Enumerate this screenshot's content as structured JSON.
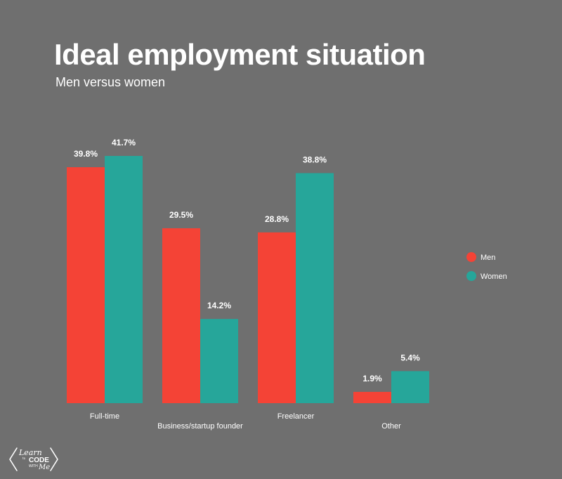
{
  "chart_data": {
    "type": "bar",
    "title": "Ideal employment situation",
    "subtitle": "Men versus women",
    "categories": [
      "Full-time",
      "Business/startup founder",
      "Freelancer",
      "Other"
    ],
    "series": [
      {
        "name": "Men",
        "values": [
          39.8,
          29.5,
          28.8,
          1.9
        ],
        "labels": [
          "39.8%",
          "29.5%",
          "28.8%",
          "1.9%"
        ],
        "color": "#f44336"
      },
      {
        "name": "Women",
        "values": [
          41.7,
          14.2,
          38.8,
          5.4
        ],
        "labels": [
          "41.7%",
          "14.2%",
          "38.8%",
          "5.4%"
        ],
        "color": "#26a69a"
      }
    ],
    "ylim": [
      0,
      41.7
    ],
    "grid": false,
    "legend_position": "right"
  },
  "logo": {
    "text_learn": "Learn",
    "text_to": "to",
    "text_code": "CODE",
    "text_with": "WITH",
    "text_me": "Me"
  },
  "colors": {
    "background": "#6f6f6f",
    "text": "#ffffff"
  }
}
